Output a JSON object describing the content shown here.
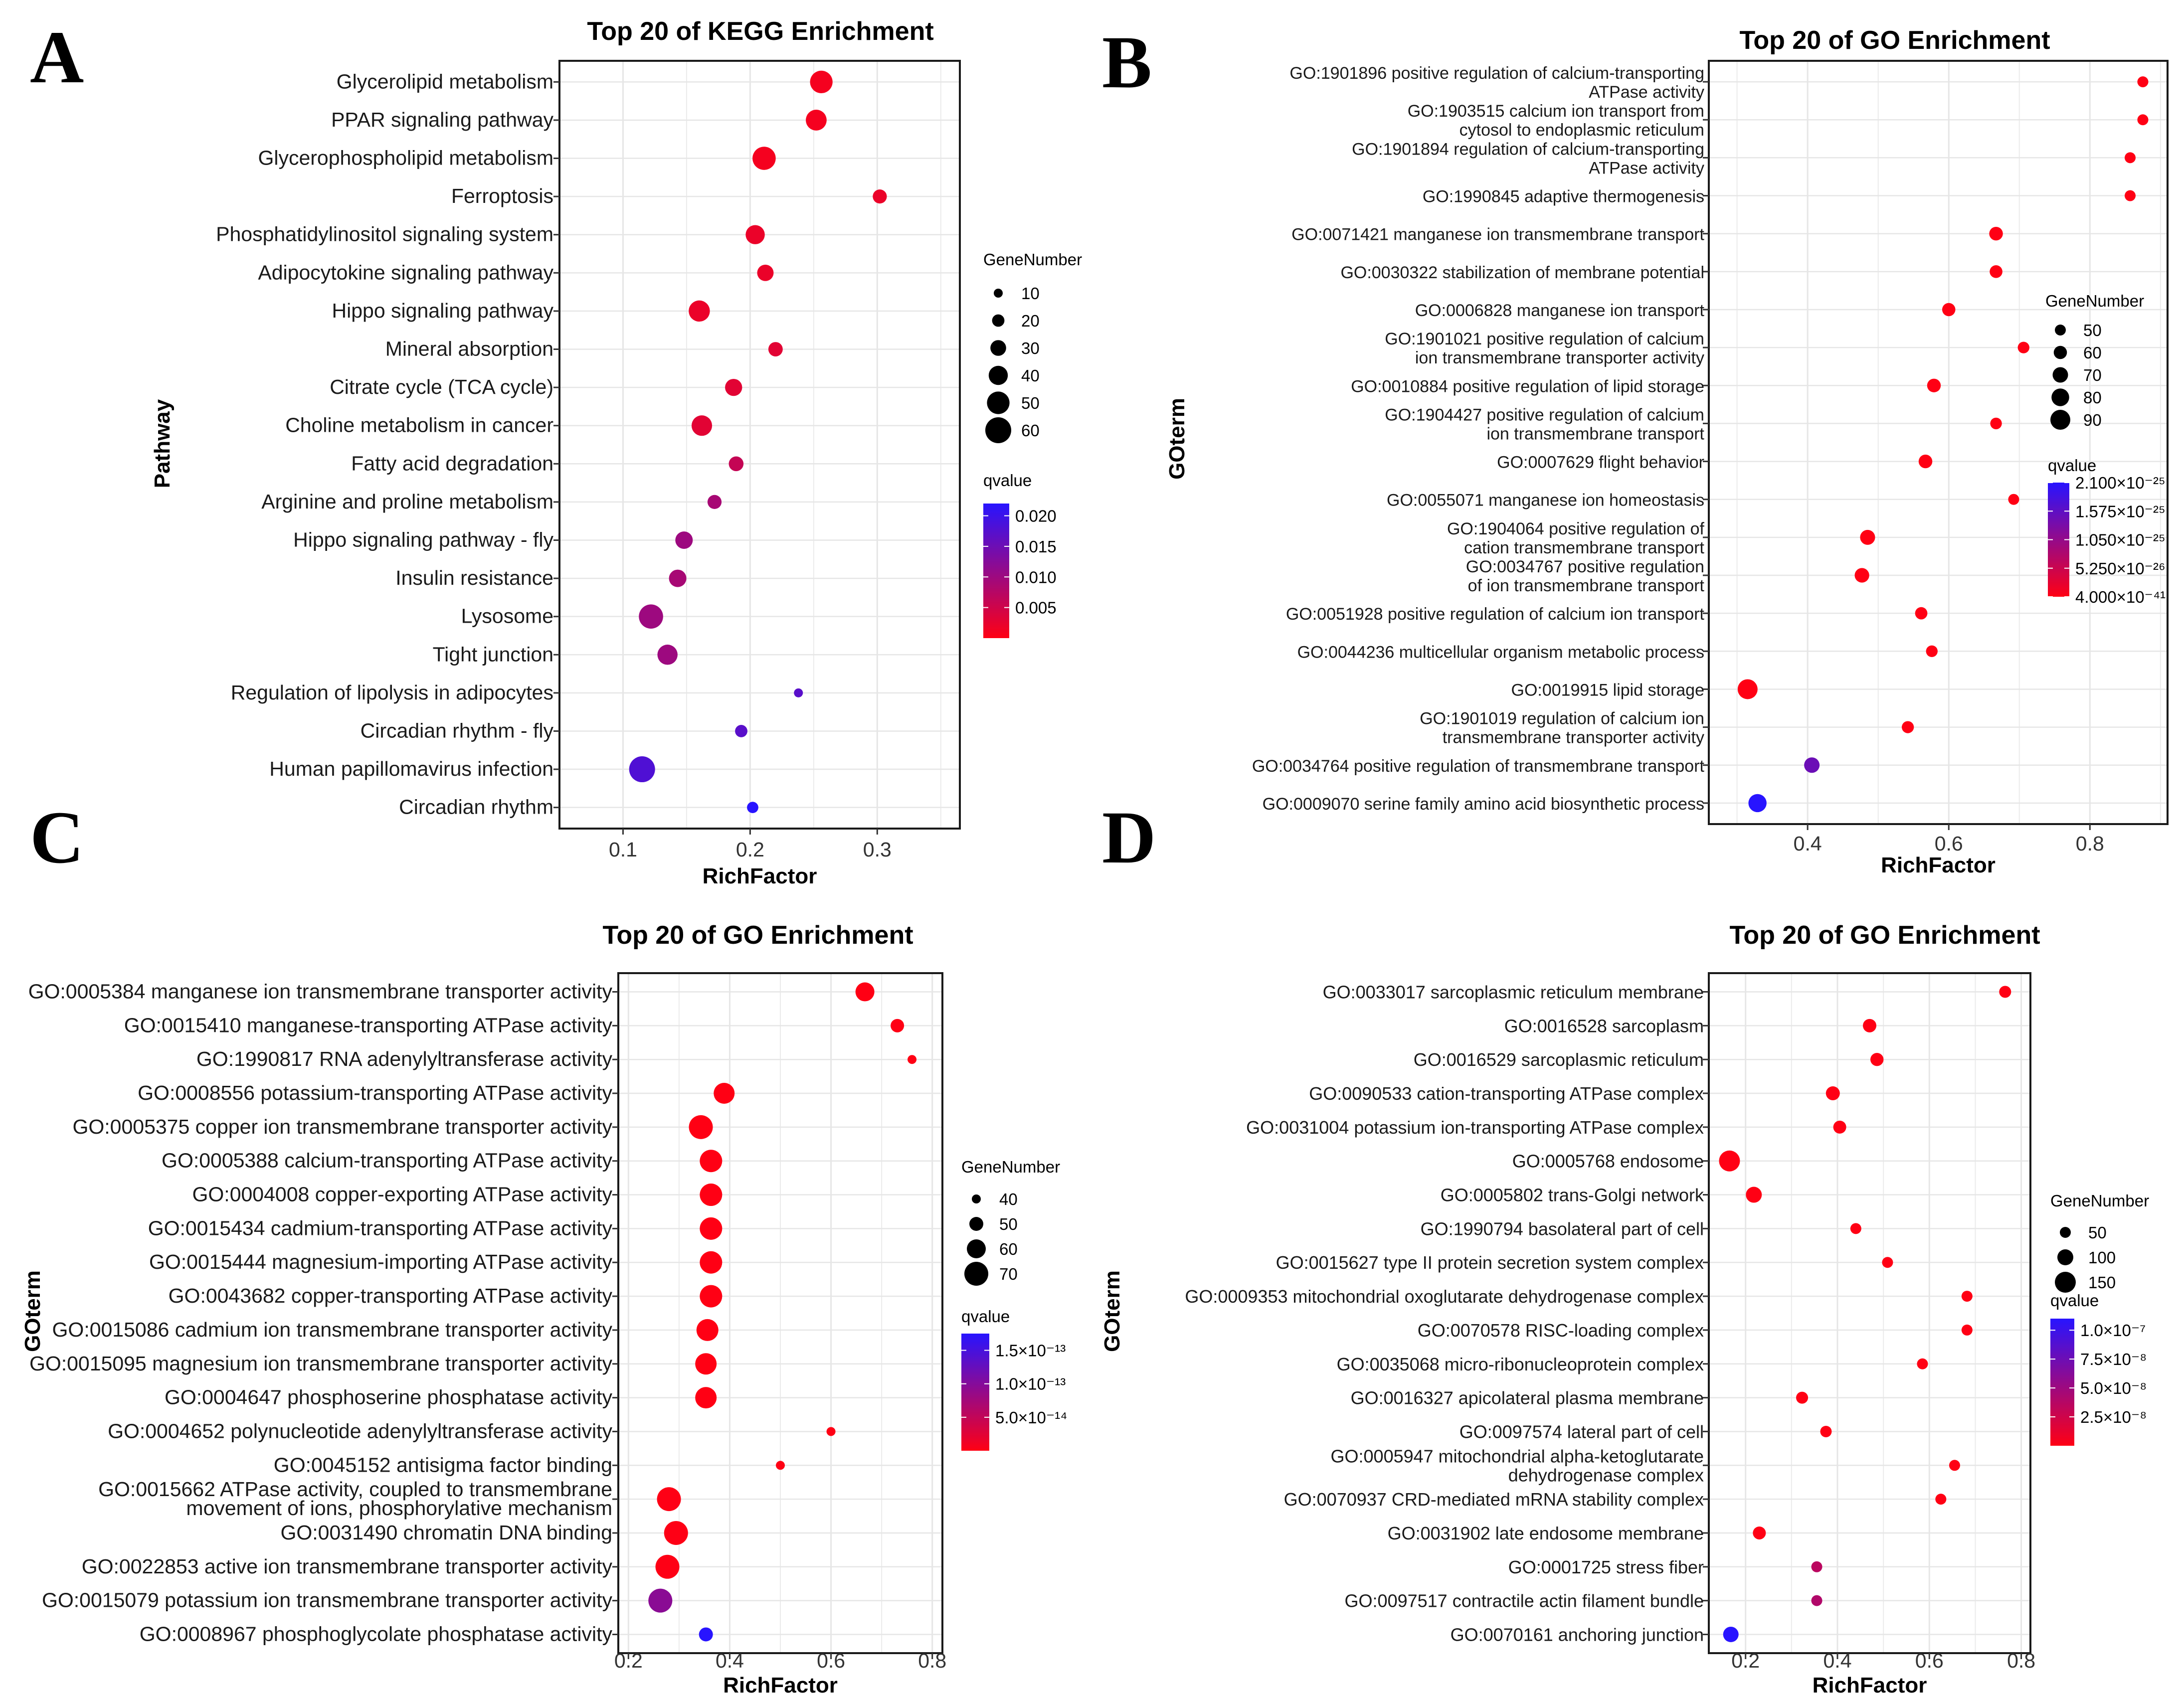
{
  "chart_data": [
    {
      "id": "A",
      "type": "scatter",
      "panel_label": "A",
      "title": "Top 20 of KEGG Enrichment",
      "xlabel": "RichFactor",
      "ylabel": "Pathway",
      "xlim": [
        0.05,
        0.365
      ],
      "xticks": [
        0.1,
        0.2,
        0.3
      ],
      "xtick_labels": [
        "0.1",
        "0.2",
        "0.3"
      ],
      "size_legend": {
        "title": "GeneNumber",
        "values": [
          10,
          20,
          30,
          40,
          50,
          60
        ],
        "labels": [
          "10",
          "20",
          "30",
          "40",
          "50",
          "60"
        ]
      },
      "color_legend": {
        "title": "qvalue",
        "min": 0.0,
        "max": 0.022,
        "ticks": [
          0.005,
          0.01,
          0.015,
          0.02
        ],
        "tick_labels": [
          "0.005",
          "0.010",
          "0.015",
          "0.020"
        ]
      },
      "points": [
        {
          "term": "Glycerolipid metabolism",
          "rich": 0.256,
          "genes": 50,
          "q": 0.001
        },
        {
          "term": "PPAR signaling pathway",
          "rich": 0.252,
          "genes": 45,
          "q": 0.001
        },
        {
          "term": "Glycerophospholipid metabolism",
          "rich": 0.211,
          "genes": 52,
          "q": 0.001
        },
        {
          "term": "Ferroptosis",
          "rich": 0.302,
          "genes": 25,
          "q": 0.002
        },
        {
          "term": "Phosphatidylinositol signaling system",
          "rich": 0.204,
          "genes": 40,
          "q": 0.002
        },
        {
          "term": "Adipocytokine signaling pathway",
          "rich": 0.212,
          "genes": 32,
          "q": 0.002
        },
        {
          "term": "Hippo signaling pathway",
          "rich": 0.16,
          "genes": 46,
          "q": 0.002
        },
        {
          "term": "Mineral absorption",
          "rich": 0.22,
          "genes": 26,
          "q": 0.003
        },
        {
          "term": "Citrate cycle (TCA cycle)",
          "rich": 0.187,
          "genes": 34,
          "q": 0.003
        },
        {
          "term": "Choline metabolism in cancer",
          "rich": 0.162,
          "genes": 44,
          "q": 0.003
        },
        {
          "term": "Fatty acid degradation",
          "rich": 0.189,
          "genes": 27,
          "q": 0.006
        },
        {
          "term": "Arginine and proline metabolism",
          "rich": 0.172,
          "genes": 25,
          "q": 0.009
        },
        {
          "term": "Hippo signaling pathway - fly",
          "rich": 0.148,
          "genes": 35,
          "q": 0.01
        },
        {
          "term": "Insulin resistance",
          "rich": 0.143,
          "genes": 35,
          "q": 0.009
        },
        {
          "term": "Lysosome",
          "rich": 0.122,
          "genes": 55,
          "q": 0.01
        },
        {
          "term": "Tight junction",
          "rich": 0.135,
          "genes": 43,
          "q": 0.01
        },
        {
          "term": "Regulation of lipolysis in adipocytes",
          "rich": 0.238,
          "genes": 10,
          "q": 0.017
        },
        {
          "term": "Circadian rhythm - fly",
          "rich": 0.193,
          "genes": 20,
          "q": 0.017
        },
        {
          "term": "Human papillomavirus infection",
          "rich": 0.115,
          "genes": 60,
          "q": 0.018
        },
        {
          "term": "Circadian rhythm",
          "rich": 0.202,
          "genes": 17,
          "q": 0.022
        }
      ]
    },
    {
      "id": "B",
      "type": "scatter",
      "panel_label": "B",
      "title": "Top 20 of GO Enrichment",
      "xlabel": "RichFactor",
      "ylabel": "GOterm",
      "xlim": [
        0.26,
        0.91
      ],
      "xticks": [
        0.4,
        0.6,
        0.8
      ],
      "xtick_labels": [
        "0.4",
        "0.6",
        "0.8"
      ],
      "size_legend": {
        "title": "GeneNumber",
        "values": [
          50,
          60,
          70,
          80,
          90
        ],
        "labels": [
          "50",
          "60",
          "70",
          "80",
          "90"
        ]
      },
      "color_legend": {
        "title": "qvalue",
        "min": 0.0,
        "max": 2.1e-25,
        "ticks": [
          4e-41,
          5.25e-26,
          1.05e-25,
          1.575e-25,
          2.1e-25
        ],
        "tick_labels": [
          "4.000×10⁻⁴¹",
          "5.250×10⁻²⁶",
          "1.050×10⁻²⁵",
          "1.575×10⁻²⁵",
          "2.100×10⁻²⁵"
        ]
      },
      "points": [
        {
          "term": [
            "GO:1901896 positive regulation of calcium-transporting",
            "ATPase activity"
          ],
          "rich": 0.875,
          "genes": 50,
          "q": 1e-30
        },
        {
          "term": [
            "GO:1903515 calcium ion transport from",
            "cytosol to endoplasmic reticulum"
          ],
          "rich": 0.875,
          "genes": 50,
          "q": 1e-30
        },
        {
          "term": [
            "GO:1901894 regulation of calcium-transporting",
            "ATPase activity"
          ],
          "rich": 0.857,
          "genes": 50,
          "q": 1e-30
        },
        {
          "term": "GO:1990845 adaptive thermogenesis",
          "rich": 0.857,
          "genes": 50,
          "q": 1e-30
        },
        {
          "term": "GO:0071421 manganese ion transmembrane transport",
          "rich": 0.667,
          "genes": 62,
          "q": 1e-30
        },
        {
          "term": "GO:0030322 stabilization of membrane potential",
          "rich": 0.667,
          "genes": 58,
          "q": 1e-30
        },
        {
          "term": "GO:0006828 manganese ion transport",
          "rich": 0.6,
          "genes": 60,
          "q": 1e-30
        },
        {
          "term": [
            "GO:1901021 positive regulation of calcium",
            "ion transmembrane transporter activity"
          ],
          "rich": 0.706,
          "genes": 53,
          "q": 1e-30
        },
        {
          "term": "GO:0010884 positive regulation of lipid storage",
          "rich": 0.579,
          "genes": 62,
          "q": 1e-30
        },
        {
          "term": [
            "GO:1904427 positive regulation of calcium",
            "ion transmembrane transport"
          ],
          "rich": 0.667,
          "genes": 53,
          "q": 1e-30
        },
        {
          "term": "GO:0007629 flight behavior",
          "rich": 0.567,
          "genes": 62,
          "q": 1e-30
        },
        {
          "term": "GO:0055071 manganese ion homeostasis",
          "rich": 0.692,
          "genes": 46,
          "q": 1e-30
        },
        {
          "term": [
            "GO:1904064 positive regulation of",
            "cation transmembrane transport"
          ],
          "rich": 0.485,
          "genes": 68,
          "q": 1e-30
        },
        {
          "term": [
            "GO:0034767 positive regulation",
            "of ion transmembrane transport"
          ],
          "rich": 0.477,
          "genes": 66,
          "q": 1e-30
        },
        {
          "term": "GO:0051928 positive regulation of calcium ion transport",
          "rich": 0.561,
          "genes": 56,
          "q": 1e-30
        },
        {
          "term": "GO:0044236 multicellular organism metabolic process",
          "rich": 0.576,
          "genes": 53,
          "q": 1e-30
        },
        {
          "term": "GO:0019915 lipid storage",
          "rich": 0.315,
          "genes": 95,
          "q": 1e-30
        },
        {
          "term": [
            "GO:1901019 regulation of calcium ion",
            "transmembrane transporter activity"
          ],
          "rich": 0.542,
          "genes": 55,
          "q": 1e-30
        },
        {
          "term": "GO:0034764 positive regulation of transmembrane transport",
          "rich": 0.406,
          "genes": 70,
          "q": 1.45e-25
        },
        {
          "term": "GO:0009070 serine family amino acid biosynthetic process",
          "rich": 0.329,
          "genes": 82,
          "q": 2.1e-25
        }
      ]
    },
    {
      "id": "C",
      "type": "scatter",
      "panel_label": "C",
      "title": "Top 20 of GO Enrichment",
      "xlabel": "RichFactor",
      "ylabel": "GOterm",
      "xlim": [
        0.18,
        0.82
      ],
      "xticks": [
        0.2,
        0.4,
        0.6,
        0.8
      ],
      "xtick_labels": [
        "0.2",
        "0.4",
        "0.6",
        "0.8"
      ],
      "size_legend": {
        "title": "GeneNumber",
        "values": [
          40,
          50,
          60,
          70
        ],
        "labels": [
          "40",
          "50",
          "60",
          "70"
        ]
      },
      "color_legend": {
        "title": "qvalue",
        "min": 0.0,
        "max": 1.75e-13,
        "ticks": [
          5e-14,
          1e-13,
          1.5e-13
        ],
        "tick_labels": [
          "5.0×10⁻¹⁴",
          "1.0×10⁻¹³",
          "1.5×10⁻¹³"
        ]
      },
      "points": [
        {
          "term": "GO:0005384 manganese ion transmembrane transporter activity",
          "rich": 0.667,
          "genes": 60,
          "q": 1e-16
        },
        {
          "term": "GO:0015410 manganese-transporting ATPase activity",
          "rich": 0.731,
          "genes": 49,
          "q": 1e-16
        },
        {
          "term": "GO:1990817 RNA adenylyltransferase activity",
          "rich": 0.76,
          "genes": 32,
          "q": 1e-16
        },
        {
          "term": "GO:0008556 potassium-transporting ATPase activity",
          "rich": 0.389,
          "genes": 64,
          "q": 1e-16
        },
        {
          "term": "GO:0005375 copper ion transmembrane transporter activity",
          "rich": 0.343,
          "genes": 70,
          "q": 1e-16
        },
        {
          "term": "GO:0005388 calcium-transporting ATPase activity",
          "rich": 0.363,
          "genes": 67,
          "q": 1e-16
        },
        {
          "term": "GO:0004008 copper-exporting ATPase activity",
          "rich": 0.363,
          "genes": 67,
          "q": 1e-16
        },
        {
          "term": "GO:0015434 cadmium-transporting ATPase activity",
          "rich": 0.363,
          "genes": 67,
          "q": 1e-16
        },
        {
          "term": "GO:0015444 magnesium-importing ATPase activity",
          "rich": 0.363,
          "genes": 67,
          "q": 1e-16
        },
        {
          "term": "GO:0043682 copper-transporting ATPase activity",
          "rich": 0.363,
          "genes": 67,
          "q": 1e-16
        },
        {
          "term": "GO:0015086 cadmium ion transmembrane transporter activity",
          "rich": 0.356,
          "genes": 66,
          "q": 1e-16
        },
        {
          "term": "GO:0015095 magnesium ion transmembrane transporter activity",
          "rich": 0.353,
          "genes": 65,
          "q": 1e-16
        },
        {
          "term": "GO:0004647 phosphoserine phosphatase activity",
          "rich": 0.353,
          "genes": 65,
          "q": 1e-16
        },
        {
          "term": "GO:0004652 polynucleotide adenylyltransferase activity",
          "rich": 0.6,
          "genes": 32,
          "q": 1e-16
        },
        {
          "term": "GO:0045152 antisigma factor binding",
          "rich": 0.5,
          "genes": 37,
          "q": 1e-16
        },
        {
          "term": [
            "GO:0015662 ATPase activity, coupled to transmembrane",
            "movement of ions, phosphorylative mechanism"
          ],
          "rich": 0.28,
          "genes": 72,
          "q": 1e-15
        },
        {
          "term": "GO:0031490 chromatin DNA binding",
          "rich": 0.294,
          "genes": 70,
          "q": 1e-15
        },
        {
          "term": "GO:0022853 active ion transmembrane transporter activity",
          "rich": 0.277,
          "genes": 70,
          "q": 1e-15
        },
        {
          "term": "GO:0015079 potassium ion transmembrane transporter activity",
          "rich": 0.263,
          "genes": 71,
          "q": 9.5e-14
        },
        {
          "term": "GO:0008967 phosphoglycolate phosphatase activity",
          "rich": 0.353,
          "genes": 50,
          "q": 1.75e-13
        }
      ]
    },
    {
      "id": "D",
      "type": "scatter",
      "panel_label": "D",
      "title": "Top 20 of GO Enrichment",
      "xlabel": "RichFactor",
      "ylabel": "GOterm",
      "xlim": [
        0.12,
        0.82
      ],
      "xticks": [
        0.2,
        0.4,
        0.6,
        0.8
      ],
      "xtick_labels": [
        "0.2",
        "0.4",
        "0.6",
        "0.8"
      ],
      "size_legend": {
        "title": "GeneNumber",
        "values": [
          50,
          100,
          150
        ],
        "labels": [
          "50",
          "100",
          "150"
        ]
      },
      "color_legend": {
        "title": "qvalue",
        "min": 0.0,
        "max": 1.1e-07,
        "ticks": [
          2.5e-08,
          5e-08,
          7.5e-08,
          1e-07
        ],
        "tick_labels": [
          "2.5×10⁻⁸",
          "5.0×10⁻⁸",
          "7.5×10⁻⁸",
          "1.0×10⁻⁷"
        ]
      },
      "points": [
        {
          "term": "GO:0033017 sarcoplasmic reticulum membrane",
          "rich": 0.765,
          "genes": 60,
          "q": 1e-12
        },
        {
          "term": "GO:0016528 sarcoplasm",
          "rich": 0.47,
          "genes": 75,
          "q": 1e-12
        },
        {
          "term": "GO:0016529 sarcoplasmic reticulum",
          "rich": 0.486,
          "genes": 72,
          "q": 1e-12
        },
        {
          "term": "GO:0090533 cation-transporting ATPase complex",
          "rich": 0.39,
          "genes": 80,
          "q": 1e-12
        },
        {
          "term": "GO:0031004 potassium ion-transporting ATPase complex",
          "rich": 0.405,
          "genes": 70,
          "q": 1e-12
        },
        {
          "term": "GO:0005768 endosome",
          "rich": 0.165,
          "genes": 160,
          "q": 1e-12
        },
        {
          "term": "GO:0005802 trans-Golgi network",
          "rich": 0.218,
          "genes": 100,
          "q": 1e-12
        },
        {
          "term": "GO:1990794 basolateral part of cell",
          "rich": 0.44,
          "genes": 50,
          "q": 1e-12
        },
        {
          "term": "GO:0015627 type II protein secretion system complex",
          "rich": 0.509,
          "genes": 42,
          "q": 1e-12
        },
        {
          "term": "GO:0009353 mitochondrial oxoglutarate dehydrogenase complex",
          "rich": 0.682,
          "genes": 25,
          "q": 1e-12
        },
        {
          "term": "GO:0070578 RISC-loading complex",
          "rich": 0.682,
          "genes": 25,
          "q": 1e-12
        },
        {
          "term": "GO:0035068 micro-ribonucleoprotein complex",
          "rich": 0.585,
          "genes": 35,
          "q": 1e-12
        },
        {
          "term": "GO:0016327 apicolateral plasma membrane",
          "rich": 0.323,
          "genes": 60,
          "q": 1e-12
        },
        {
          "term": "GO:0097574 lateral part of cell",
          "rich": 0.375,
          "genes": 55,
          "q": 1e-12
        },
        {
          "term": [
            "GO:0005947 mitochondrial alpha-ketoglutarate",
            "dehydrogenase complex"
          ],
          "rich": 0.655,
          "genes": 22,
          "q": 1e-12
        },
        {
          "term": "GO:0070937 CRD-mediated mRNA stability complex",
          "rich": 0.625,
          "genes": 25,
          "q": 1e-12
        },
        {
          "term": "GO:0031902 late endosome membrane",
          "rich": 0.23,
          "genes": 70,
          "q": 1e-11
        },
        {
          "term": "GO:0001725 stress fiber",
          "rich": 0.355,
          "genes": 50,
          "q": 3.5e-08
        },
        {
          "term": "GO:0097517 contractile actin filament bundle",
          "rich": 0.355,
          "genes": 50,
          "q": 4e-08
        },
        {
          "term": "GO:0070161 anchoring junction",
          "rich": 0.168,
          "genes": 95,
          "q": 1.1e-07
        }
      ]
    }
  ]
}
